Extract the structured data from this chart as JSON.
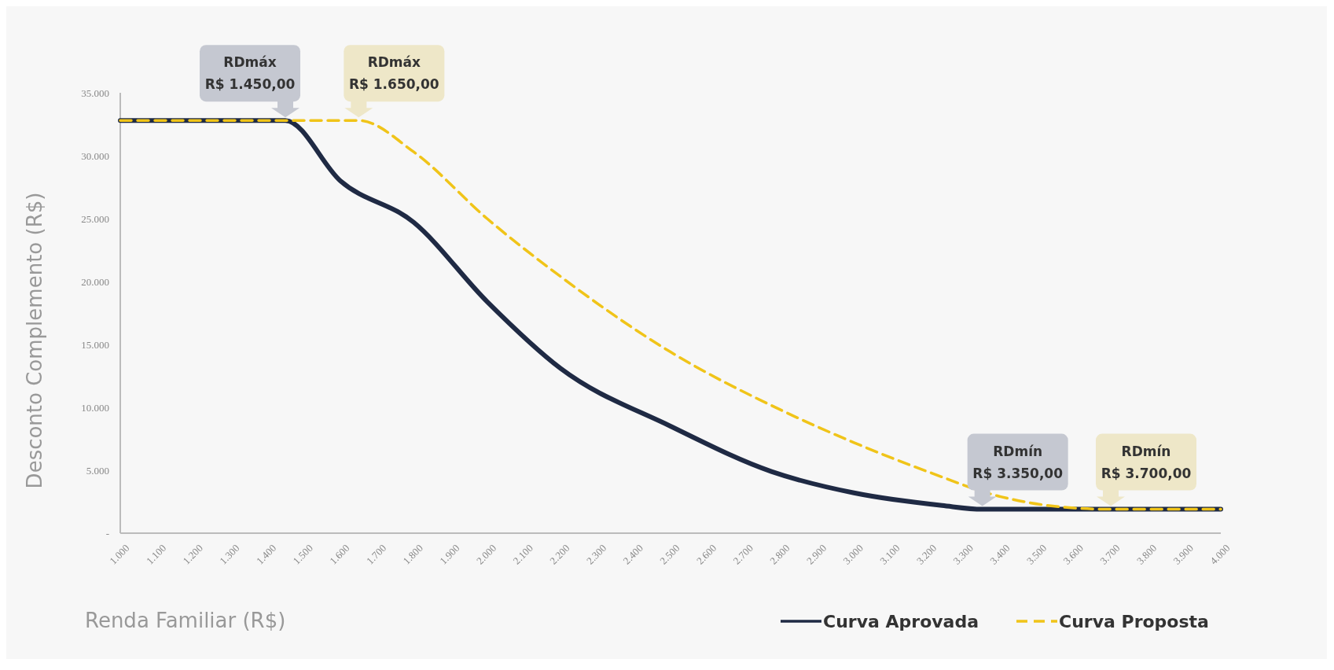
{
  "chart_data": {
    "type": "line",
    "xlabel": "Renda Familiar (R$)",
    "ylabel": "Desconto Complemento (R$)",
    "xlim": [
      1000,
      4000
    ],
    "ylim": [
      0,
      35000
    ],
    "xticks": [
      {
        "value": 1000,
        "label": "1.000"
      },
      {
        "value": 1100,
        "label": "1.100"
      },
      {
        "value": 1200,
        "label": "1.200"
      },
      {
        "value": 1300,
        "label": "1.300"
      },
      {
        "value": 1400,
        "label": "1.400"
      },
      {
        "value": 1500,
        "label": "1.500"
      },
      {
        "value": 1600,
        "label": "1.600"
      },
      {
        "value": 1700,
        "label": "1.700"
      },
      {
        "value": 1800,
        "label": "1.800"
      },
      {
        "value": 1900,
        "label": "1.900"
      },
      {
        "value": 2000,
        "label": "2.000"
      },
      {
        "value": 2100,
        "label": "2.100"
      },
      {
        "value": 2200,
        "label": "2.200"
      },
      {
        "value": 2300,
        "label": "2.300"
      },
      {
        "value": 2400,
        "label": "2.400"
      },
      {
        "value": 2500,
        "label": "2.500"
      },
      {
        "value": 2600,
        "label": "2.600"
      },
      {
        "value": 2700,
        "label": "2.700"
      },
      {
        "value": 2800,
        "label": "2.800"
      },
      {
        "value": 2900,
        "label": "2.900"
      },
      {
        "value": 3000,
        "label": "3.000"
      },
      {
        "value": 3100,
        "label": "3.100"
      },
      {
        "value": 3200,
        "label": "3.200"
      },
      {
        "value": 3300,
        "label": "3.300"
      },
      {
        "value": 3400,
        "label": "3.400"
      },
      {
        "value": 3500,
        "label": "3.500"
      },
      {
        "value": 3600,
        "label": "3.600"
      },
      {
        "value": 3700,
        "label": "3.700"
      },
      {
        "value": 3800,
        "label": "3.800"
      },
      {
        "value": 3900,
        "label": "3.900"
      },
      {
        "value": 4000,
        "label": "4.000"
      }
    ],
    "yticks": [
      {
        "value": 0,
        "label": "-"
      },
      {
        "value": 5000,
        "label": "5.000"
      },
      {
        "value": 10000,
        "label": "10.000"
      },
      {
        "value": 15000,
        "label": "15.000"
      },
      {
        "value": 20000,
        "label": "20.000"
      },
      {
        "value": 25000,
        "label": "25.000"
      },
      {
        "value": 30000,
        "label": "30.000"
      },
      {
        "value": 35000,
        "label": "35.000"
      }
    ],
    "legend": "bottom right",
    "series": [
      {
        "name": "Curva Aprovada",
        "color": "#1f2a44",
        "line_style": "solid",
        "x": [
          1000,
          1450,
          1600,
          1800,
          2000,
          2200,
          2500,
          2775,
          3000,
          3240,
          3350,
          4000
        ],
        "values": [
          32800,
          32800,
          28000,
          24700,
          18400,
          13100,
          8500,
          4900,
          3200,
          2200,
          1900,
          1900
        ]
      },
      {
        "name": "Curva Proposta",
        "color": "#f0c419",
        "line_style": "dashed",
        "x": [
          1000,
          1650,
          1800,
          2000,
          2200,
          2500,
          2800,
          3000,
          3200,
          3400,
          3600,
          3700,
          4000
        ],
        "values": [
          32800,
          32800,
          30300,
          25000,
          20400,
          14400,
          9800,
          7200,
          4900,
          2900,
          2000,
          1900,
          1900
        ]
      }
    ],
    "annotations": [
      {
        "text": "RDmáx\nR$ 1.450,00",
        "x": 1450,
        "y": 32800
      },
      {
        "text": "RDmáx\nR$ 1.650,00",
        "x": 1650,
        "y": 32800
      },
      {
        "text": "RDmín\nR$ 3.350,00",
        "x": 3350,
        "y": 1900
      },
      {
        "text": "RDmín\nR$ 3.700,00",
        "x": 3700,
        "y": 1900
      }
    ]
  }
}
